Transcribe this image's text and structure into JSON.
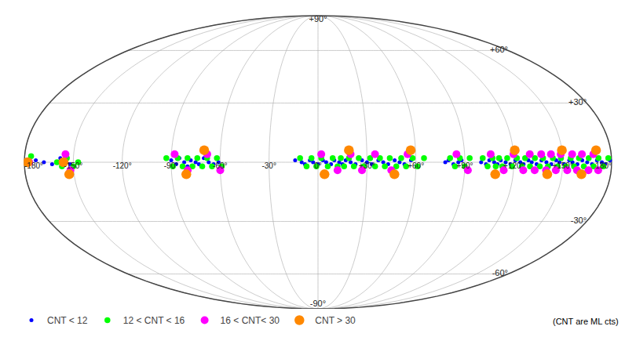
{
  "chart_data": {
    "type": "map",
    "series": [
      {
        "name": "CNT < 12",
        "color": "#0000ff",
        "x": [
          -173,
          -168,
          -163,
          -158,
          -155,
          -152,
          -90,
          -87,
          -85,
          -82,
          -80,
          -78,
          -75,
          -73,
          -70,
          -67,
          -64,
          -61,
          -14,
          -10,
          -8,
          -5,
          -3,
          0,
          3,
          5,
          8,
          10,
          13,
          15,
          17,
          20,
          23,
          27,
          30,
          33,
          37,
          40,
          43,
          47,
          50,
          53,
          57,
          78,
          80,
          83,
          86,
          88,
          100,
          103,
          105,
          108,
          110,
          112,
          115,
          118,
          121,
          124,
          126,
          129,
          131,
          134,
          137,
          140,
          143,
          146,
          148,
          151,
          154,
          156,
          159,
          162,
          165,
          168,
          171,
          174,
          176,
          179
        ],
        "y": [
          1,
          0,
          -1,
          2,
          0,
          -1,
          1,
          -1,
          2,
          0,
          -2,
          1,
          0,
          -1,
          2,
          0,
          -1,
          0,
          1,
          0,
          -1,
          1,
          0,
          -1,
          1,
          0,
          -1,
          1,
          0,
          -1,
          1,
          0,
          -1,
          1,
          0,
          -1,
          1,
          0,
          -1,
          1,
          0,
          -1,
          1,
          0,
          1,
          -1,
          0,
          1,
          0,
          -1,
          1,
          0,
          -1,
          1,
          0,
          -1,
          1,
          0,
          -1,
          1,
          0,
          -1,
          1,
          0,
          -1,
          1,
          0,
          -1,
          1,
          0,
          -1,
          1,
          0,
          -1,
          1,
          0,
          -1,
          1
        ]
      },
      {
        "name": "12 < CNT < 16",
        "color": "#00ff00",
        "x": [
          -176,
          -160,
          -157,
          -154,
          -150,
          -147,
          -93,
          -89,
          -86,
          -83,
          -80,
          -77,
          -74,
          -71,
          -68,
          -65,
          -62,
          -59,
          -11,
          -7,
          -4,
          -1,
          2,
          6,
          9,
          12,
          14,
          16,
          19,
          22,
          25,
          28,
          32,
          35,
          38,
          41,
          44,
          48,
          51,
          54,
          58,
          61,
          65,
          81,
          84,
          87,
          90,
          93,
          101,
          104,
          107,
          109,
          111,
          113,
          116,
          119,
          122,
          125,
          127,
          130,
          133,
          136,
          138,
          141,
          144,
          147,
          149,
          152,
          155,
          157,
          160,
          163,
          166,
          169,
          172,
          175,
          178
        ],
        "y": [
          3,
          0,
          -2,
          2,
          -2,
          0,
          2,
          -2,
          2,
          -2,
          2,
          -2,
          2,
          -2,
          2,
          -2,
          2,
          -2,
          2,
          -2,
          2,
          -2,
          2,
          -2,
          2,
          -2,
          2,
          -2,
          2,
          -2,
          2,
          -2,
          2,
          -2,
          2,
          -2,
          2,
          -2,
          2,
          -2,
          2,
          -2,
          2,
          2,
          -2,
          2,
          -2,
          2,
          2,
          -2,
          2,
          -2,
          2,
          -2,
          2,
          -2,
          2,
          -2,
          2,
          -2,
          2,
          -2,
          2,
          -2,
          2,
          -2,
          2,
          -2,
          2,
          -2,
          2,
          -2,
          2,
          -2,
          2,
          -2,
          2
        ]
      },
      {
        "name": "16 < CNT< 30",
        "color": "#ff00ff",
        "x": [
          -177,
          -155,
          -152,
          -88,
          -80,
          -68,
          -60,
          2,
          12,
          20,
          27,
          35,
          45,
          55,
          85,
          92,
          106,
          114,
          120,
          126,
          130,
          133,
          137,
          140,
          143,
          146,
          149,
          153,
          156,
          159,
          162,
          166,
          169,
          172
        ],
        "y": [
          0,
          4,
          -4,
          4,
          -4,
          4,
          -4,
          4,
          -4,
          4,
          -4,
          4,
          -4,
          4,
          4,
          -4,
          4,
          -4,
          4,
          -4,
          4,
          -4,
          4,
          -4,
          4,
          -4,
          4,
          -4,
          4,
          -4,
          4,
          -4,
          4,
          -4
        ]
      },
      {
        "name": "CNT > 30",
        "color": "#ff8800",
        "x": [
          -178,
          -156,
          -153,
          -81,
          -70,
          4,
          19,
          47,
          57,
          109,
          121,
          141,
          150,
          162,
          171
        ],
        "y": [
          0,
          0,
          -6,
          -6,
          6,
          -6,
          6,
          -6,
          6,
          -6,
          6,
          -6,
          6,
          -6,
          6
        ]
      }
    ],
    "xlim": [
      -180,
      180
    ],
    "ylim": [
      -90,
      90
    ],
    "xticks": [
      {
        "value": -180,
        "label": "-180°"
      },
      {
        "value": -150,
        "label": "-150°"
      },
      {
        "value": -120,
        "label": "-120°"
      },
      {
        "value": -90,
        "label": "-90°"
      },
      {
        "value": -60,
        "label": "-60°"
      },
      {
        "value": -30,
        "label": "-30°"
      },
      {
        "value": 0,
        "label": "0°"
      },
      {
        "value": 30,
        "label": "+30°"
      },
      {
        "value": 60,
        "label": "+60°"
      },
      {
        "value": 90,
        "label": "+90°"
      },
      {
        "value": 120,
        "label": "+120°"
      },
      {
        "value": 150,
        "label": "+150°"
      },
      {
        "value": 180,
        "label": "180°"
      }
    ],
    "yticks": [
      {
        "value": -90,
        "label": "-90°"
      },
      {
        "value": -60,
        "label": "-60°"
      },
      {
        "value": -30,
        "label": "-30°"
      },
      {
        "value": 30,
        "label": "+30°"
      },
      {
        "value": 60,
        "label": "+60°"
      },
      {
        "value": 90,
        "label": "+90°"
      }
    ],
    "grid": true,
    "legend": "lower left",
    "annotations": [
      "(CNT are ML cts)"
    ]
  }
}
